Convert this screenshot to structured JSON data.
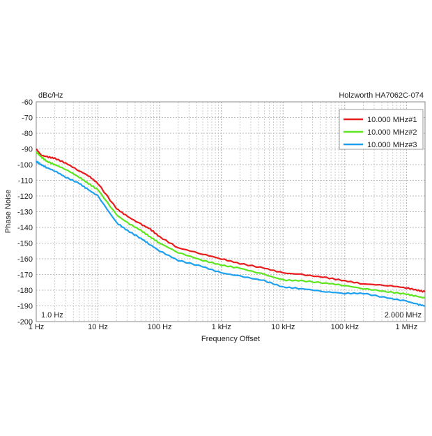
{
  "chart_data": {
    "type": "line",
    "title": "Holzworth HA7062C-074",
    "yunit": "dBc/Hz",
    "xlabel": "Frequency Offset",
    "ylabel": "Phase Noise",
    "xscale": "log",
    "xlim": [
      1,
      2000000
    ],
    "ylim": [
      -200,
      -60
    ],
    "grid": true,
    "legend_position": "top-right",
    "x_tick_values": [
      1,
      10,
      100,
      1000,
      10000,
      100000,
      1000000
    ],
    "x_tick_labels": [
      "1 Hz",
      "10 Hz",
      "100 Hz",
      "1 kHz",
      "10 kHz",
      "100 kHz",
      "1 MHz"
    ],
    "y_ticks": [
      -60,
      -70,
      -80,
      -90,
      -100,
      -110,
      -120,
      -130,
      -140,
      -150,
      -160,
      -170,
      -180,
      -190,
      -200
    ],
    "annotations": {
      "start": "1.0 Hz",
      "end": "2.000 MHz"
    },
    "x": [
      1,
      1.2,
      1.5,
      2,
      3,
      5,
      7,
      10,
      20,
      30,
      50,
      70,
      100,
      200,
      500,
      1000,
      2000,
      5000,
      10000,
      20000,
      50000,
      100000,
      200000,
      500000,
      1000000,
      1500000,
      2000000
    ],
    "series": [
      {
        "name": "10.000 MHz#1",
        "color": "#e81c1c",
        "values": [
          -90,
          -94,
          -95,
          -96,
          -99,
          -104,
          -107,
          -112,
          -128,
          -133,
          -138,
          -141,
          -146,
          -153,
          -157,
          -160,
          -163,
          -166,
          -169,
          -170,
          -172,
          -174,
          -176,
          -177,
          -178.5,
          -180,
          -181
        ]
      },
      {
        "name": "10.000 MHz#2",
        "color": "#5ee61e",
        "values": [
          -92,
          -95,
          -98,
          -100,
          -103,
          -108,
          -112,
          -116,
          -132,
          -137,
          -142,
          -146,
          -150,
          -156,
          -161,
          -164,
          -166,
          -170,
          -173.5,
          -174,
          -175.5,
          -177,
          -179,
          -181,
          -182.5,
          -184,
          -185
        ]
      },
      {
        "name": "10.000 MHz#3",
        "color": "#1ea0f0",
        "values": [
          -98,
          -100,
          -102,
          -104,
          -108,
          -112,
          -116,
          -120,
          -137,
          -142,
          -147,
          -151,
          -155,
          -161,
          -165,
          -169,
          -171,
          -174,
          -178,
          -179,
          -181,
          -182,
          -182,
          -185,
          -187,
          -189,
          -190
        ]
      }
    ]
  }
}
